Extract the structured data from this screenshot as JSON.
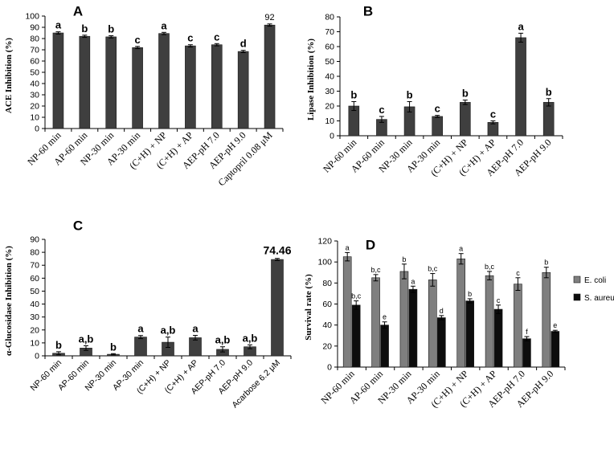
{
  "chart_data": [
    {
      "panel": "A",
      "type": "bar",
      "ylabel": "ACE Inhibition (%)",
      "ylim": [
        0,
        100
      ],
      "yticks": [
        0,
        10,
        20,
        30,
        40,
        50,
        60,
        70,
        80,
        90,
        100
      ],
      "categories": [
        "NP-60 min",
        "AP-60 min",
        "NP-30 min",
        "AP-30 min",
        "(C+H) + NP",
        "(C+H) + AP",
        "AEP-pH 7.0",
        "AEP-pH 9.0",
        "Captopril 0.08 μM"
      ],
      "values": [
        85,
        82,
        81.5,
        72,
        84.5,
        73.5,
        74.5,
        68.5,
        92
      ],
      "errors": [
        1,
        1,
        1,
        1,
        1,
        1,
        1,
        1,
        1
      ],
      "letters": [
        "a",
        "b",
        "b",
        "c",
        "a",
        "c",
        "c",
        "d",
        ""
      ],
      "data_labels": [
        "",
        "",
        "",
        "",
        "",
        "",
        "",
        "",
        "92"
      ],
      "color": "#3f3f3f"
    },
    {
      "panel": "B",
      "type": "bar",
      "ylabel": "Lipase Inhibition (%)",
      "ylim": [
        0,
        80
      ],
      "yticks": [
        0,
        10,
        20,
        30,
        40,
        50,
        60,
        70,
        80
      ],
      "categories": [
        "NP-60 min",
        "AP-60 min",
        "NP-30 min",
        "AP-30 min",
        "(C+H) + NP",
        "(C+H) + AP",
        "AEP-pH 7.0",
        "AEP-pH 9.0"
      ],
      "values": [
        20,
        11,
        19.5,
        13,
        22.5,
        9,
        66,
        22.5
      ],
      "errors": [
        3,
        2,
        3.5,
        0.7,
        1.5,
        1,
        3,
        2.5
      ],
      "letters": [
        "b",
        "c",
        "b",
        "c",
        "b",
        "c",
        "a",
        "b"
      ],
      "color": "#3f3f3f"
    },
    {
      "panel": "C",
      "type": "bar",
      "ylabel": "α-Glucosidase Inhibition (%)",
      "ylim": [
        0,
        90
      ],
      "yticks": [
        0,
        10,
        20,
        30,
        40,
        50,
        60,
        70,
        80,
        90
      ],
      "categories": [
        "NP-60 min",
        "AP-60 min",
        "NP-30 min",
        "AP-30 min",
        "(C+H) + NP",
        "(C+H) + AP",
        "AEP-pH 7.0",
        "AEP-pH 9.0",
        "Acarbose  6.2 μM"
      ],
      "values": [
        2,
        6,
        1.2,
        14.5,
        10.5,
        14,
        5,
        7,
        74.46
      ],
      "errors": [
        1.2,
        1.8,
        0.5,
        1.2,
        4,
        1.8,
        2,
        1.5,
        0.8
      ],
      "letters": [
        "b",
        "a,b",
        "b",
        "a",
        "a,b",
        "a",
        "a,b",
        "a,b",
        ""
      ],
      "data_labels": [
        "",
        "",
        "",
        "",
        "",
        "",
        "",
        "",
        "74.46"
      ],
      "color": "#3f3f3f"
    },
    {
      "panel": "D",
      "type": "bar",
      "ylabel": "Survival rate (%)",
      "ylim": [
        0,
        120
      ],
      "yticks": [
        0,
        20,
        40,
        60,
        80,
        100,
        120
      ],
      "categories": [
        "NP-60 min",
        "AP-60 min",
        "NP-30 min",
        "AP-30 min",
        "(C+H) + NP",
        "(C+H) + AP",
        "AEP-pH 7.0",
        "AEP-pH 9.0"
      ],
      "series": [
        {
          "name": "E. coli",
          "color": "#7f7f7f",
          "values": [
            105,
            85,
            91,
            83,
            103,
            87,
            79,
            90
          ],
          "errors": [
            4,
            3,
            7,
            6,
            5,
            4,
            6,
            5
          ],
          "letters": [
            "a",
            "b,c",
            "b",
            "b,c",
            "a",
            "b,c",
            "c",
            "b"
          ]
        },
        {
          "name": "S. aureus",
          "color": "#0d0d0d",
          "values": [
            59,
            40,
            74,
            47,
            63,
            55,
            27,
            34
          ],
          "errors": [
            4,
            3,
            3,
            2,
            2,
            4,
            2,
            1
          ],
          "letters": [
            "b,c",
            "e",
            "a",
            "d",
            "b",
            "c",
            "f",
            "e"
          ]
        }
      ],
      "legend_position": "right"
    }
  ]
}
